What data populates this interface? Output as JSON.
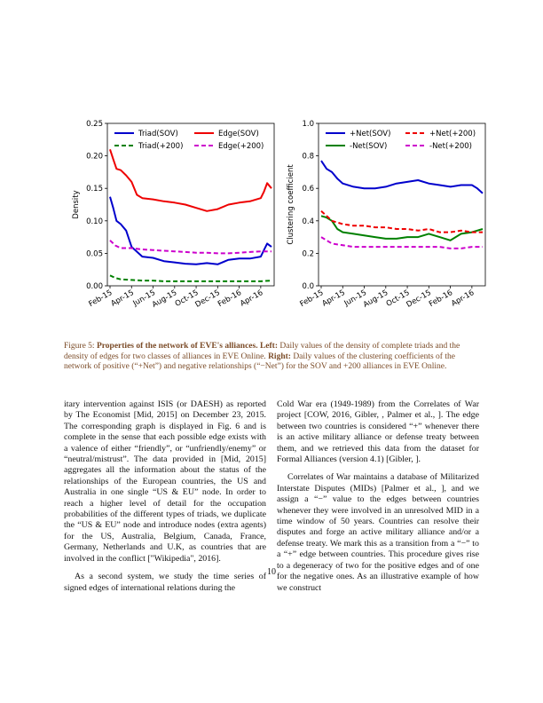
{
  "chart_data": [
    {
      "type": "line",
      "xlabel": "",
      "ylabel": "Density",
      "ylim": [
        0,
        0.25
      ],
      "yticks": [
        "0.00",
        "0.05",
        "0.10",
        "0.15",
        "0.20",
        "0.25"
      ],
      "xticks": [
        "Feb-15",
        "Apr-15",
        "Jun-15",
        "Aug-15",
        "Oct-15",
        "Dec-15",
        "Feb-16",
        "Apr-16"
      ],
      "legend_position": "top",
      "series": [
        {
          "name": "Triad(SOV)",
          "color": "#0000cc",
          "style": "solid",
          "x": [
            0,
            0.3,
            0.6,
            1,
            1.5,
            2,
            3,
            4,
            5,
            6,
            7,
            8,
            9,
            10,
            11,
            12,
            13,
            14,
            14.3,
            14.6,
            15
          ],
          "values": [
            0.137,
            0.12,
            0.1,
            0.095,
            0.085,
            0.06,
            0.045,
            0.043,
            0.038,
            0.036,
            0.034,
            0.033,
            0.035,
            0.033,
            0.04,
            0.042,
            0.042,
            0.045,
            0.055,
            0.065,
            0.06
          ]
        },
        {
          "name": "Triad(+200)",
          "color": "#008000",
          "style": "dashed",
          "x": [
            0,
            0.5,
            1,
            2,
            3,
            4,
            5,
            6,
            7,
            8,
            9,
            10,
            11,
            12,
            13,
            14,
            15
          ],
          "values": [
            0.016,
            0.012,
            0.01,
            0.009,
            0.008,
            0.008,
            0.007,
            0.007,
            0.007,
            0.007,
            0.007,
            0.007,
            0.007,
            0.007,
            0.007,
            0.007,
            0.008
          ]
        },
        {
          "name": "Edge(SOV)",
          "color": "#ee0000",
          "style": "solid",
          "x": [
            0,
            0.3,
            0.6,
            1,
            1.5,
            2,
            2.5,
            3,
            4,
            5,
            6,
            7,
            8,
            9,
            10,
            11,
            12,
            13,
            14,
            14.3,
            14.6,
            15
          ],
          "values": [
            0.21,
            0.195,
            0.18,
            0.178,
            0.17,
            0.16,
            0.14,
            0.135,
            0.133,
            0.13,
            0.128,
            0.125,
            0.12,
            0.115,
            0.118,
            0.125,
            0.128,
            0.13,
            0.135,
            0.145,
            0.158,
            0.15
          ]
        },
        {
          "name": "Edge(+200)",
          "color": "#cc00cc",
          "style": "dashed",
          "x": [
            0,
            0.5,
            1,
            2,
            3,
            4,
            5,
            6,
            7,
            8,
            9,
            10,
            11,
            12,
            13,
            14,
            15
          ],
          "values": [
            0.07,
            0.062,
            0.058,
            0.058,
            0.056,
            0.055,
            0.054,
            0.053,
            0.052,
            0.051,
            0.051,
            0.05,
            0.05,
            0.051,
            0.052,
            0.053,
            0.053
          ]
        }
      ]
    },
    {
      "type": "line",
      "xlabel": "",
      "ylabel": "Clustering coefficient",
      "ylim": [
        0,
        1.0
      ],
      "yticks": [
        "0.0",
        "0.2",
        "0.4",
        "0.6",
        "0.8",
        "1.0"
      ],
      "xticks": [
        "Feb-15",
        "Apr-15",
        "Jun-15",
        "Aug-15",
        "Oct-15",
        "Dec-15",
        "Feb-16",
        "Apr-16"
      ],
      "legend_position": "top",
      "series": [
        {
          "name": "+Net(SOV)",
          "color": "#0000cc",
          "style": "solid",
          "x": [
            0,
            0.5,
            1,
            1.5,
            2,
            3,
            4,
            5,
            6,
            7,
            8,
            9,
            10,
            11,
            12,
            13,
            14,
            14.5,
            15
          ],
          "values": [
            0.77,
            0.72,
            0.7,
            0.66,
            0.63,
            0.61,
            0.6,
            0.6,
            0.61,
            0.63,
            0.64,
            0.65,
            0.63,
            0.62,
            0.61,
            0.62,
            0.62,
            0.6,
            0.57
          ]
        },
        {
          "name": "-Net(SOV)",
          "color": "#008000",
          "style": "solid",
          "x": [
            0,
            0.5,
            1,
            1.5,
            2,
            3,
            4,
            5,
            6,
            7,
            8,
            9,
            10,
            11,
            12,
            13,
            14,
            15
          ],
          "values": [
            0.43,
            0.42,
            0.4,
            0.35,
            0.33,
            0.32,
            0.31,
            0.3,
            0.29,
            0.29,
            0.3,
            0.3,
            0.32,
            0.3,
            0.28,
            0.32,
            0.33,
            0.35
          ]
        },
        {
          "name": "+Net(+200)",
          "color": "#ee0000",
          "style": "dashed",
          "x": [
            0,
            0.5,
            1,
            2,
            3,
            4,
            5,
            6,
            7,
            8,
            9,
            10,
            11,
            12,
            13,
            14,
            15
          ],
          "values": [
            0.46,
            0.43,
            0.4,
            0.38,
            0.37,
            0.37,
            0.36,
            0.36,
            0.35,
            0.35,
            0.34,
            0.35,
            0.33,
            0.33,
            0.34,
            0.33,
            0.33
          ]
        },
        {
          "name": "-Net(+200)",
          "color": "#cc00cc",
          "style": "dashed",
          "x": [
            0,
            0.5,
            1,
            2,
            3,
            4,
            5,
            6,
            7,
            8,
            9,
            10,
            11,
            12,
            13,
            14,
            15
          ],
          "values": [
            0.3,
            0.28,
            0.26,
            0.25,
            0.24,
            0.24,
            0.24,
            0.24,
            0.24,
            0.24,
            0.24,
            0.24,
            0.24,
            0.23,
            0.23,
            0.24,
            0.24
          ]
        }
      ]
    }
  ],
  "caption": {
    "fig_label": "Figure 5: ",
    "title": "Properties of the network of EVE's alliances.",
    "left_label": " Left:",
    "left_text": " Daily values of the density of complete triads and the density of edges for two classes of alliances in EVE Online.",
    "right_label": " Right:",
    "right_text": " Daily values of the clustering coefficients of the network of positive (“+Net”) and negative relationships (“−Net”) for the SOV and +200 alliances in EVE Online."
  },
  "body": {
    "left_p1": "itary intervention against ISIS (or DAESH) as reported by The Economist [Mid, 2015] on December 23, 2015. The corresponding graph is displayed in Fig. 6 and is complete in the sense that each possible edge exists with a valence of either “friendly”, or “unfriendly/enemy” or “neutral/mistrust”. The data provided in [Mid, 2015] aggregates all the information about the status of the relationships of the European countries, the US and Australia in one single “US & EU” node. In order to reach a higher level of detail for the occupation probabilities of the different types of triads, we duplicate the “US & EU” node and introduce nodes (extra agents) for the US, Australia, Belgium, Canada, France, Germany, Netherlands and U.K, as countries that are involved in the conflict [\"Wikipedia\", 2016].",
    "left_p2": "As a second system, we study the time series of signed edges of international relations during the",
    "right_p1": "Cold War era (1949-1989) from the Correlates of War project [COW, 2016, Gibler, , Palmer et al., ]. The edge between two countries is considered “+” whenever there is an active military alliance or defense treaty between them, and we retrieved this data from the dataset for Formal Alliances (version 4.1) [Gibler, ].",
    "right_p2": "Correlates of War maintains a database of Militarized Interstate Disputes (MIDs) [Palmer et al., ], and we assign a “−” value to the edges between countries whenever they were involved in an unresolved MID in a time window of 50 years. Countries can resolve their disputes and forge an active military alliance and/or a defense treaty. We mark this as a transition from a “−” to a “+” edge between countries. This procedure gives rise to a degeneracy of two for the positive edges and of one for the negative ones. As an illustrative example of how we construct"
  },
  "page_number": "10"
}
